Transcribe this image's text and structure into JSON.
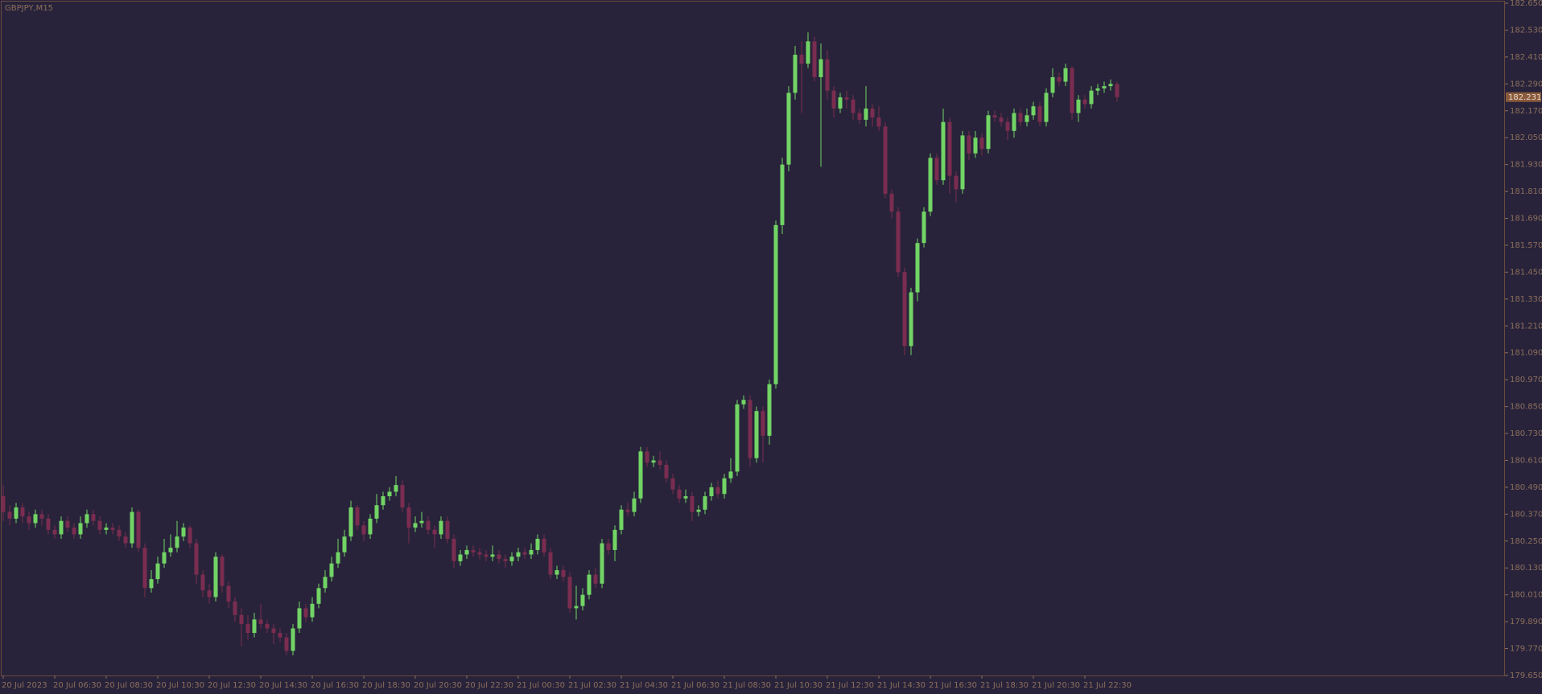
{
  "chart_data": {
    "type": "candlestick",
    "title": "GBPJPY,M15",
    "background": "#28233a",
    "up_color": "#72d465",
    "down_color": "#7a2d50",
    "axis_color": "#8c6f5c",
    "last_price": 182.231,
    "ylim": [
      179.65,
      182.65
    ],
    "yticks": [
      {
        "value": 179.65,
        "label": "179.650"
      },
      {
        "value": 179.77,
        "label": "179.770"
      },
      {
        "value": 179.89,
        "label": "179.890"
      },
      {
        "value": 180.01,
        "label": "180.010"
      },
      {
        "value": 180.13,
        "label": "180.130"
      },
      {
        "value": 180.25,
        "label": "180.250"
      },
      {
        "value": 180.37,
        "label": "180.370"
      },
      {
        "value": 180.49,
        "label": "180.490"
      },
      {
        "value": 180.61,
        "label": "180.610"
      },
      {
        "value": 180.73,
        "label": "180.730"
      },
      {
        "value": 180.85,
        "label": "180.850"
      },
      {
        "value": 180.97,
        "label": "180.970"
      },
      {
        "value": 181.09,
        "label": "181.090"
      },
      {
        "value": 181.21,
        "label": "181.210"
      },
      {
        "value": 181.33,
        "label": "181.330"
      },
      {
        "value": 181.45,
        "label": "181.450"
      },
      {
        "value": 181.57,
        "label": "181.570"
      },
      {
        "value": 181.69,
        "label": "181.690"
      },
      {
        "value": 181.81,
        "label": "181.810"
      },
      {
        "value": 181.93,
        "label": "181.930"
      },
      {
        "value": 182.05,
        "label": "182.050"
      },
      {
        "value": 182.17,
        "label": "182.170"
      },
      {
        "value": 182.29,
        "label": "182.290"
      },
      {
        "value": 182.41,
        "label": "182.410"
      },
      {
        "value": 182.53,
        "label": "182.530"
      },
      {
        "value": 182.65,
        "label": "182.650"
      }
    ],
    "categories": [
      "20 Jul 2023",
      null,
      null,
      null,
      null,
      null,
      null,
      null,
      "20 Jul 06:30",
      null,
      null,
      null,
      null,
      null,
      null,
      null,
      "20 Jul 08:30",
      null,
      null,
      null,
      null,
      null,
      null,
      null,
      "20 Jul 10:30",
      null,
      null,
      null,
      null,
      null,
      null,
      null,
      "20 Jul 12:30",
      null,
      null,
      null,
      null,
      null,
      null,
      null,
      "20 Jul 14:30",
      null,
      null,
      null,
      null,
      null,
      null,
      null,
      "20 Jul 16:30",
      null,
      null,
      null,
      null,
      null,
      null,
      null,
      "20 Jul 18:30",
      null,
      null,
      null,
      null,
      null,
      null,
      null,
      "20 Jul 20:30",
      null,
      null,
      null,
      null,
      null,
      null,
      null,
      "20 Jul 22:30",
      null,
      null,
      null,
      null,
      null,
      null,
      null,
      "21 Jul 00:30",
      null,
      null,
      null,
      null,
      null,
      null,
      null,
      "21 Jul 02:30",
      null,
      null,
      null,
      null,
      null,
      null,
      null,
      "21 Jul 04:30",
      null,
      null,
      null,
      null,
      null,
      null,
      null,
      "21 Jul 06:30",
      null,
      null,
      null,
      null,
      null,
      null,
      null,
      "21 Jul 08:30",
      null,
      null,
      null,
      null,
      null,
      null,
      null,
      "21 Jul 10:30",
      null,
      null,
      null,
      null,
      null,
      null,
      null,
      "21 Jul 12:30",
      null,
      null,
      null,
      null,
      null,
      null,
      null,
      "21 Jul 14:30",
      null,
      null,
      null,
      null,
      null,
      null,
      null,
      "21 Jul 16:30",
      null,
      null,
      null,
      null,
      null,
      null,
      null,
      "21 Jul 18:30",
      null,
      null,
      null,
      null,
      null,
      null,
      null,
      "21 Jul 20:30",
      null,
      null,
      null,
      null,
      null,
      null,
      null,
      "21 Jul 22:30",
      null,
      null,
      null,
      null,
      null
    ],
    "open": [
      180.45,
      180.38,
      180.35,
      180.4,
      180.36,
      180.33,
      180.37,
      180.35,
      180.3,
      180.28,
      180.34,
      180.31,
      180.28,
      180.33,
      180.37,
      180.34,
      180.3,
      180.31,
      180.3,
      180.27,
      180.24,
      180.38,
      180.22,
      180.04,
      180.08,
      180.15,
      180.2,
      180.22,
      180.27,
      180.31,
      180.24,
      180.1,
      180.03,
      180.0,
      180.18,
      180.05,
      179.98,
      179.92,
      179.88,
      179.84,
      179.9,
      179.88,
      179.86,
      179.84,
      179.82,
      179.76,
      179.86,
      179.95,
      179.91,
      179.97,
      180.04,
      180.09,
      180.15,
      180.2,
      180.27,
      180.4,
      180.32,
      180.28,
      180.35,
      180.41,
      180.45,
      180.47,
      180.5,
      180.4,
      180.31,
      180.33,
      180.34,
      180.3,
      180.28,
      180.34,
      180.26,
      180.16,
      180.19,
      180.21,
      180.2,
      180.19,
      180.18,
      180.19,
      180.17,
      180.16,
      180.18,
      180.2,
      180.19,
      180.21,
      180.26,
      180.2,
      180.1,
      180.12,
      180.09,
      179.95,
      179.96,
      180.01,
      180.1,
      180.06,
      180.24,
      180.21,
      180.3,
      180.39,
      180.38,
      180.44,
      180.65,
      180.6,
      180.61,
      180.59,
      180.53,
      180.48,
      180.44,
      180.45,
      180.38,
      180.39,
      180.45,
      180.49,
      180.46,
      180.53,
      180.56,
      180.86,
      180.88,
      180.62,
      180.83,
      180.72,
      180.95,
      181.66,
      181.93,
      182.25,
      182.42,
      182.38,
      182.48,
      182.32,
      182.4,
      182.26,
      182.18,
      182.23,
      182.22,
      182.16,
      182.13,
      182.18,
      182.14,
      182.1,
      181.8,
      181.72,
      181.45,
      181.12,
      181.36,
      181.58,
      181.72,
      181.96,
      181.86,
      182.12,
      181.88,
      181.82,
      182.06,
      181.98,
      182.05,
      182.0,
      182.15,
      182.14,
      182.12,
      182.08,
      182.16,
      182.12,
      182.15,
      182.19,
      182.12,
      182.25,
      182.32,
      182.3,
      182.36,
      182.16,
      182.22,
      182.2,
      182.26,
      182.27,
      182.28,
      182.29
    ],
    "high": [
      180.5,
      180.41,
      180.42,
      180.42,
      180.38,
      180.39,
      180.39,
      180.37,
      180.32,
      180.36,
      180.36,
      180.33,
      180.36,
      180.39,
      180.39,
      180.36,
      180.33,
      180.33,
      180.32,
      180.29,
      180.4,
      180.39,
      180.24,
      180.12,
      180.18,
      180.26,
      180.28,
      180.34,
      180.33,
      180.32,
      180.26,
      180.12,
      180.06,
      180.2,
      180.19,
      180.07,
      180.0,
      179.95,
      179.92,
      179.93,
      179.97,
      179.9,
      179.88,
      179.86,
      179.84,
      179.88,
      179.98,
      179.97,
      180.0,
      180.06,
      180.12,
      180.18,
      180.26,
      180.3,
      180.43,
      180.41,
      180.34,
      180.37,
      180.46,
      180.47,
      180.49,
      180.54,
      180.52,
      180.42,
      180.36,
      180.38,
      180.36,
      180.32,
      180.36,
      180.36,
      180.28,
      180.21,
      180.23,
      180.23,
      180.22,
      180.21,
      180.23,
      180.21,
      180.19,
      180.2,
      180.22,
      180.22,
      180.24,
      180.28,
      180.28,
      180.22,
      180.14,
      180.14,
      180.11,
      180.05,
      180.04,
      180.12,
      180.13,
      180.26,
      180.26,
      180.32,
      180.41,
      180.42,
      180.47,
      180.67,
      180.67,
      180.63,
      180.65,
      180.61,
      180.55,
      180.5,
      180.48,
      180.47,
      180.41,
      180.47,
      180.51,
      180.52,
      180.55,
      180.62,
      180.88,
      180.9,
      180.9,
      180.85,
      180.85,
      180.97,
      181.68,
      181.96,
      182.28,
      182.46,
      182.48,
      182.52,
      182.5,
      182.47,
      182.44,
      182.28,
      182.25,
      182.26,
      182.24,
      182.18,
      182.28,
      182.2,
      182.19,
      182.12,
      181.82,
      181.74,
      181.47,
      181.38,
      181.6,
      181.74,
      181.98,
      181.98,
      182.18,
      182.14,
      181.9,
      182.08,
      182.08,
      182.08,
      182.07,
      182.17,
      182.17,
      182.16,
      182.14,
      182.18,
      182.18,
      182.18,
      182.21,
      182.21,
      182.27,
      182.36,
      182.34,
      182.38,
      182.37,
      182.24,
      182.24,
      182.28,
      182.29,
      182.3,
      182.31,
      182.3
    ],
    "low": [
      180.34,
      180.32,
      180.33,
      180.33,
      180.3,
      180.31,
      180.32,
      180.28,
      180.26,
      180.26,
      180.29,
      180.26,
      180.26,
      180.31,
      180.32,
      180.28,
      180.28,
      180.28,
      180.25,
      180.22,
      180.22,
      180.2,
      180.0,
      180.02,
      180.06,
      180.13,
      180.18,
      180.2,
      180.25,
      180.22,
      180.06,
      180.0,
      179.97,
      179.98,
      180.02,
      179.95,
      179.89,
      179.78,
      179.81,
      179.82,
      179.86,
      179.84,
      179.79,
      179.8,
      179.74,
      179.74,
      179.84,
      179.89,
      179.89,
      179.95,
      180.02,
      180.07,
      180.13,
      180.18,
      180.25,
      180.3,
      180.25,
      180.26,
      180.33,
      180.39,
      180.43,
      180.45,
      180.38,
      180.24,
      180.29,
      180.31,
      180.28,
      180.22,
      180.26,
      180.24,
      180.13,
      180.14,
      180.17,
      180.18,
      180.17,
      180.16,
      180.16,
      180.15,
      180.13,
      180.14,
      180.16,
      180.17,
      180.17,
      180.19,
      180.18,
      180.08,
      180.08,
      180.07,
      179.93,
      179.9,
      179.94,
      179.99,
      180.04,
      180.04,
      180.19,
      180.16,
      180.28,
      180.36,
      180.36,
      180.42,
      180.58,
      180.58,
      180.57,
      180.51,
      180.46,
      180.42,
      180.42,
      180.34,
      180.36,
      180.37,
      180.43,
      180.44,
      180.44,
      180.51,
      180.54,
      180.84,
      180.58,
      180.6,
      180.6,
      180.68,
      180.93,
      181.62,
      181.9,
      182.22,
      182.16,
      182.36,
      182.3,
      181.92,
      182.22,
      182.14,
      182.16,
      182.18,
      182.13,
      182.11,
      182.1,
      182.1,
      182.08,
      181.78,
      181.69,
      181.43,
      181.08,
      181.08,
      181.32,
      181.56,
      181.7,
      181.84,
      181.84,
      181.8,
      181.76,
      181.8,
      181.95,
      181.96,
      181.97,
      181.98,
      182.12,
      182.1,
      182.04,
      182.05,
      182.1,
      182.1,
      182.13,
      182.1,
      182.1,
      182.23,
      182.28,
      182.28,
      182.13,
      182.12,
      182.18,
      182.18,
      182.24,
      182.25,
      182.26,
      182.21
    ],
    "close": [
      180.38,
      180.35,
      180.4,
      180.36,
      180.33,
      180.37,
      180.35,
      180.3,
      180.28,
      180.34,
      180.31,
      180.28,
      180.33,
      180.37,
      180.34,
      180.3,
      180.31,
      180.3,
      180.27,
      180.24,
      180.38,
      180.22,
      180.04,
      180.08,
      180.15,
      180.2,
      180.22,
      180.27,
      180.31,
      180.24,
      180.1,
      180.03,
      180.0,
      180.18,
      180.05,
      179.98,
      179.92,
      179.88,
      179.84,
      179.9,
      179.88,
      179.86,
      179.84,
      179.82,
      179.76,
      179.86,
      179.95,
      179.91,
      179.97,
      180.04,
      180.09,
      180.15,
      180.2,
      180.27,
      180.4,
      180.32,
      180.28,
      180.35,
      180.41,
      180.45,
      180.47,
      180.5,
      180.4,
      180.31,
      180.33,
      180.34,
      180.3,
      180.28,
      180.34,
      180.26,
      180.16,
      180.19,
      180.21,
      180.2,
      180.19,
      180.18,
      180.19,
      180.17,
      180.16,
      180.18,
      180.2,
      180.19,
      180.21,
      180.26,
      180.2,
      180.1,
      180.12,
      180.09,
      179.95,
      179.96,
      180.01,
      180.1,
      180.06,
      180.24,
      180.21,
      180.3,
      180.39,
      180.38,
      180.44,
      180.65,
      180.6,
      180.61,
      180.59,
      180.53,
      180.48,
      180.44,
      180.45,
      180.38,
      180.39,
      180.45,
      180.49,
      180.46,
      180.53,
      180.56,
      180.86,
      180.88,
      180.62,
      180.83,
      180.72,
      180.95,
      181.66,
      181.93,
      182.25,
      182.42,
      182.38,
      182.48,
      182.32,
      182.4,
      182.26,
      182.18,
      182.23,
      182.22,
      182.16,
      182.13,
      182.18,
      182.14,
      182.1,
      181.8,
      181.72,
      181.45,
      181.12,
      181.36,
      181.58,
      181.72,
      181.96,
      181.86,
      182.12,
      181.88,
      181.82,
      182.06,
      181.98,
      182.05,
      182.0,
      182.15,
      182.14,
      182.12,
      182.08,
      182.16,
      182.12,
      182.15,
      182.19,
      182.12,
      182.25,
      182.32,
      182.3,
      182.36,
      182.16,
      182.22,
      182.2,
      182.26,
      182.27,
      182.28,
      182.29,
      182.231
    ]
  }
}
